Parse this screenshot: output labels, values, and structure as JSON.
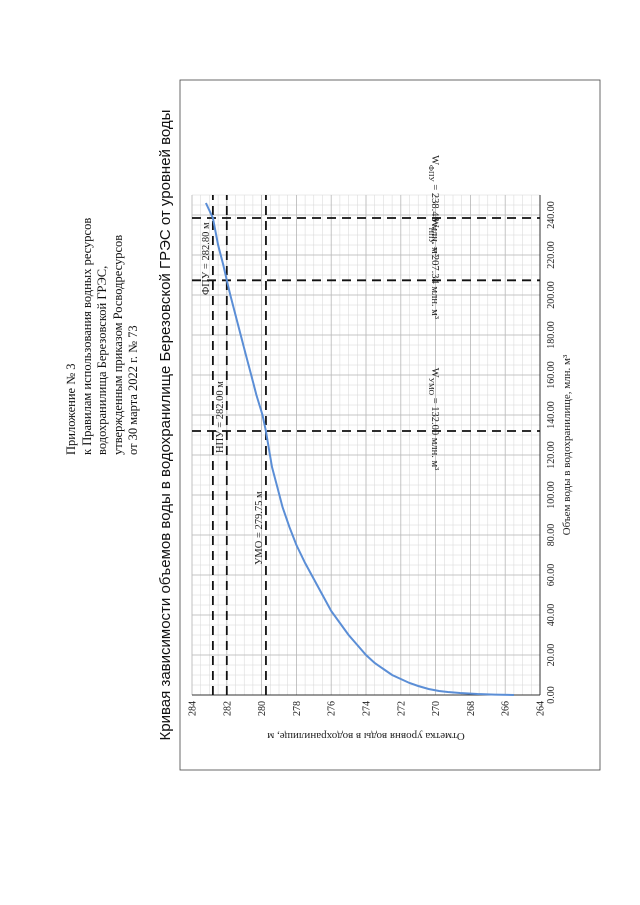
{
  "header": {
    "line1": "Приложение № 3",
    "line2": "к Правилам использования водных ресурсов",
    "line3": "водохранилища Березовской ГРЭС,",
    "line4": "утвержденным приказом Росводресурсов",
    "line5": "от 30 марта 2022 г. № 73"
  },
  "chart_data": {
    "type": "line",
    "title": "Кривая зависимости объемов воды в водохранилище Березовской ГРЭС от уровней воды",
    "xlabel": "Объем воды в водохранилище, млн. м³",
    "ylabel": "Отметка уровня воды в водохранилище, м",
    "xlim": [
      0,
      250
    ],
    "ylim": [
      264,
      284
    ],
    "xticks": [
      "0.00",
      "20.00",
      "40.00",
      "60.00",
      "80.00",
      "100.00",
      "120.00",
      "140.00",
      "160.00",
      "180.00",
      "200.00",
      "220.00",
      "240.00"
    ],
    "yticks": [
      "264",
      "266",
      "268",
      "270",
      "272",
      "274",
      "276",
      "278",
      "280",
      "282",
      "284"
    ],
    "grid": true,
    "series": [
      {
        "color": "#5b8ed6",
        "x": [
          0,
          0.2,
          0.5,
          1,
          1.5,
          2,
          3,
          4.5,
          6,
          8,
          10,
          13,
          16,
          20,
          25,
          30,
          36,
          42,
          50,
          58,
          66,
          75,
          84,
          94,
          104,
          114,
          124,
          132,
          140,
          150,
          160,
          170,
          180,
          190,
          200,
          207.34,
          215,
          225,
          238.49,
          246
        ],
        "y": [
          265.5,
          266.6,
          267.6,
          268.6,
          269.3,
          269.8,
          270.4,
          271.0,
          271.5,
          272.0,
          272.5,
          273.0,
          273.5,
          274.0,
          274.5,
          275.0,
          275.5,
          276.0,
          276.5,
          277.0,
          277.5,
          278.0,
          278.4,
          278.8,
          279.1,
          279.4,
          279.6,
          279.75,
          279.95,
          280.3,
          280.6,
          280.9,
          281.2,
          281.5,
          281.8,
          282.0,
          282.2,
          282.5,
          282.8,
          283.2
        ]
      }
    ],
    "annotations": {
      "fpu": {
        "label": "ФПУ = 282.80 м",
        "y": 282.8
      },
      "npu": {
        "label": "НПУ = 282.00 м",
        "y": 282.0
      },
      "umo": {
        "label": "УМО = 279.75 м",
        "y": 279.75
      },
      "w_fpu": {
        "label_main": "W",
        "label_sub": "ФПУ",
        "label_rest": " = 238.49 млн. м³",
        "x": 238.49
      },
      "w_npu": {
        "label_main": "W",
        "label_sub": "НПУ",
        "label_rest": " = 207.34 млн. м³",
        "x": 207.34
      },
      "w_umo": {
        "label_main": "W",
        "label_sub": "УМО",
        "label_rest": " = 132.00 млн. м³",
        "x": 132.0
      }
    }
  }
}
